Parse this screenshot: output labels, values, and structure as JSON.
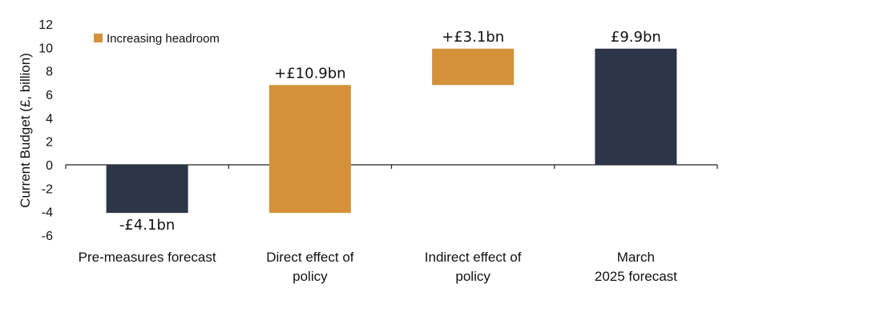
{
  "chart_data": {
    "type": "bar",
    "subtype": "waterfall",
    "ylabel": "Current Budget (£, billion)",
    "ylim": [
      -6,
      12
    ],
    "yticks": [
      -6,
      -4,
      -2,
      0,
      2,
      4,
      6,
      8,
      10,
      12
    ],
    "grid": false,
    "legend": {
      "position": "top-left",
      "entries": [
        {
          "label": "Increasing headroom",
          "color": "#D4913A"
        }
      ]
    },
    "colors": {
      "total": "#2D3548",
      "increase": "#D4913A"
    },
    "bars": [
      {
        "category": [
          "Pre-measures forecast"
        ],
        "start": 0,
        "end": -4.1,
        "value": -4.1,
        "kind": "total",
        "label": "-£4.1bn"
      },
      {
        "category": [
          "Direct effect of",
          "policy"
        ],
        "start": -4.1,
        "end": 6.8,
        "value": 10.9,
        "kind": "increase",
        "label": "+£10.9bn"
      },
      {
        "category": [
          "Indirect effect of",
          "policy"
        ],
        "start": 6.8,
        "end": 9.9,
        "value": 3.1,
        "kind": "increase",
        "label": "+£3.1bn"
      },
      {
        "category": [
          "March",
          "2025 forecast"
        ],
        "start": 0,
        "end": 9.9,
        "value": 9.9,
        "kind": "total",
        "label": "£9.9bn"
      }
    ]
  }
}
